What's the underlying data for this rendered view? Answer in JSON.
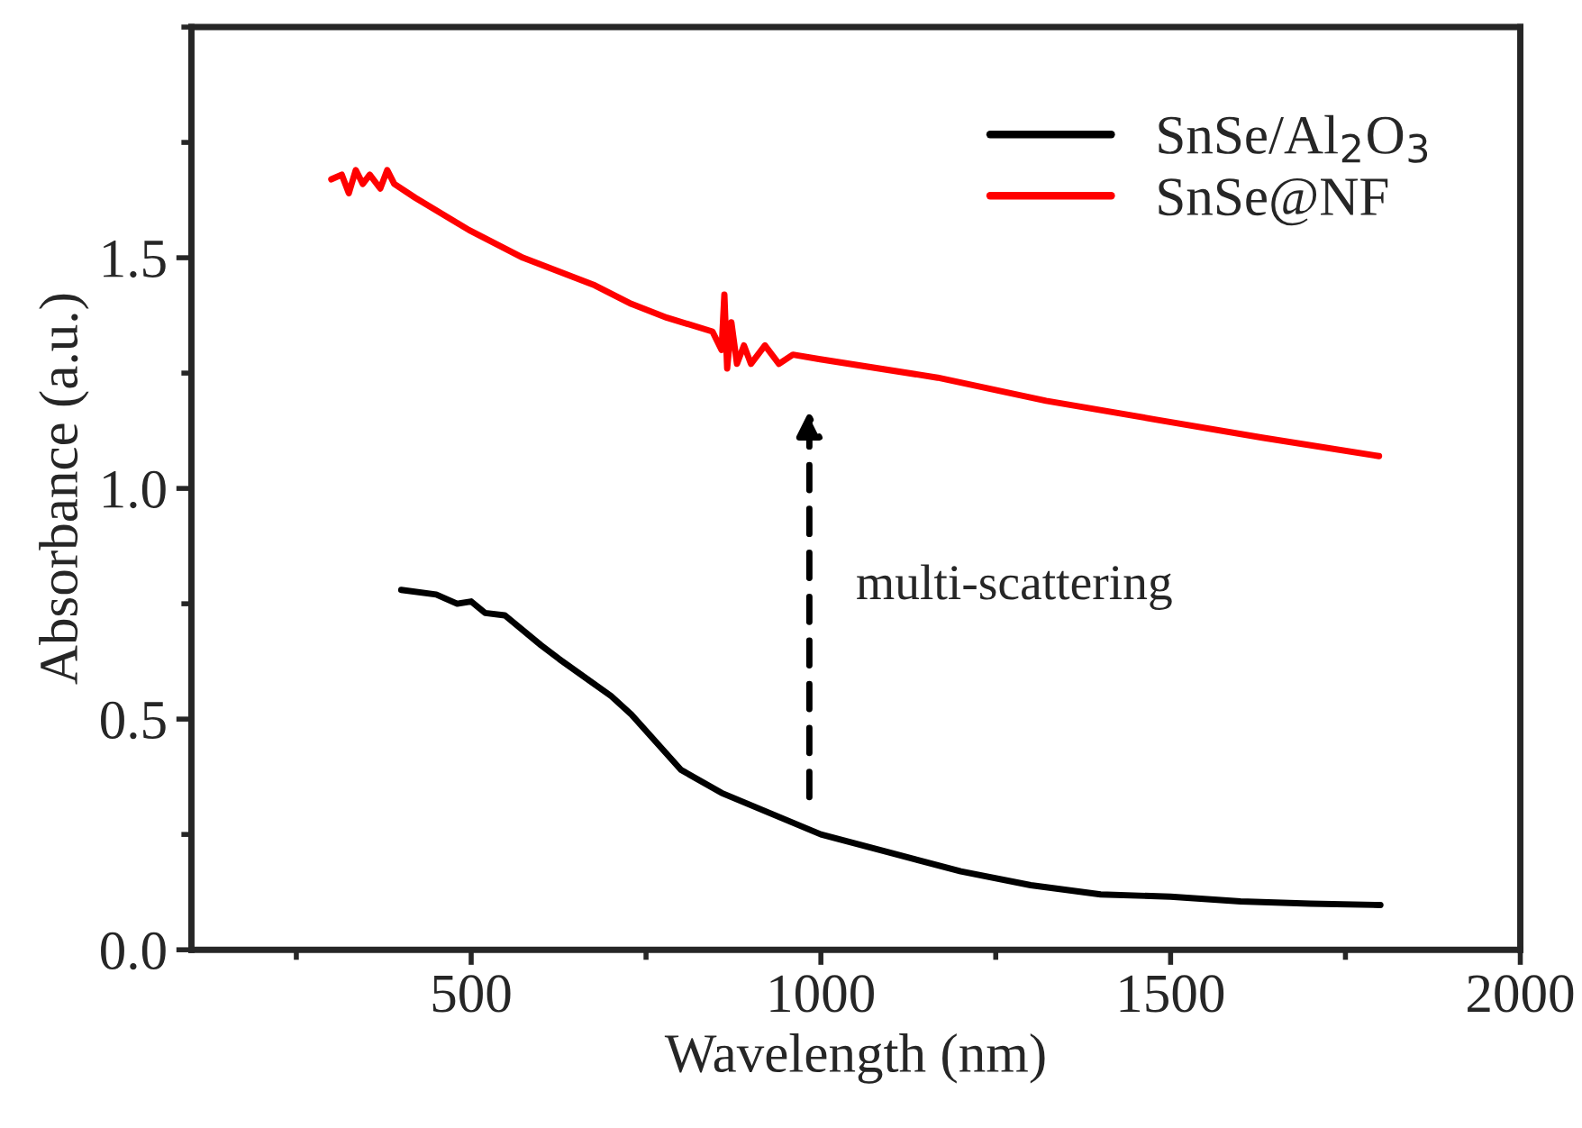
{
  "chart_data": {
    "type": "line",
    "xlabel": "Wavelength (nm)",
    "ylabel": "Absorbance (a.u.)",
    "xlim": [
      100,
      2000
    ],
    "xticks": [
      500,
      1000,
      1500,
      2000
    ],
    "ylim": [
      0,
      2.0
    ],
    "yticks": [
      {
        "value": 0,
        "label": "0.0"
      },
      0.5,
      {
        "value": 1,
        "label": "1.0"
      },
      1.5
    ],
    "grid": false,
    "legend": "top right",
    "annotations": [
      "multi-scattering"
    ],
    "series": [
      {
        "name": "SnSe/Al$_{2}$O$_{3}$",
        "color": "#000000",
        "x": [
          400,
          450,
          480,
          500,
          520,
          548,
          600,
          626,
          700,
          729,
          800,
          858,
          1000,
          1100,
          1200,
          1300,
          1400,
          1500,
          1600,
          1700,
          1800
        ],
        "values": [
          0.78,
          0.77,
          0.75,
          0.755,
          0.73,
          0.725,
          0.66,
          0.63,
          0.55,
          0.51,
          0.39,
          0.34,
          0.25,
          0.21,
          0.17,
          0.14,
          0.12,
          0.115,
          0.105,
          0.1,
          0.097
        ]
      },
      {
        "name": "SnSe@NF",
        "color": "#ff0000",
        "x": [
          300,
          315,
          325,
          335,
          345,
          355,
          370,
          380,
          390,
          420,
          497,
          574,
          677,
          729,
          780,
          845,
          858,
          862,
          866,
          872,
          880,
          890,
          900,
          920,
          940,
          960,
          999,
          1167,
          1322,
          1476,
          1631,
          1798
        ],
        "values": [
          1.67,
          1.68,
          1.64,
          1.69,
          1.66,
          1.68,
          1.65,
          1.69,
          1.66,
          1.63,
          1.56,
          1.5,
          1.44,
          1.4,
          1.37,
          1.34,
          1.3,
          1.42,
          1.26,
          1.36,
          1.27,
          1.31,
          1.27,
          1.31,
          1.27,
          1.29,
          1.28,
          1.24,
          1.19,
          1.15,
          1.11,
          1.07
        ]
      }
    ]
  }
}
